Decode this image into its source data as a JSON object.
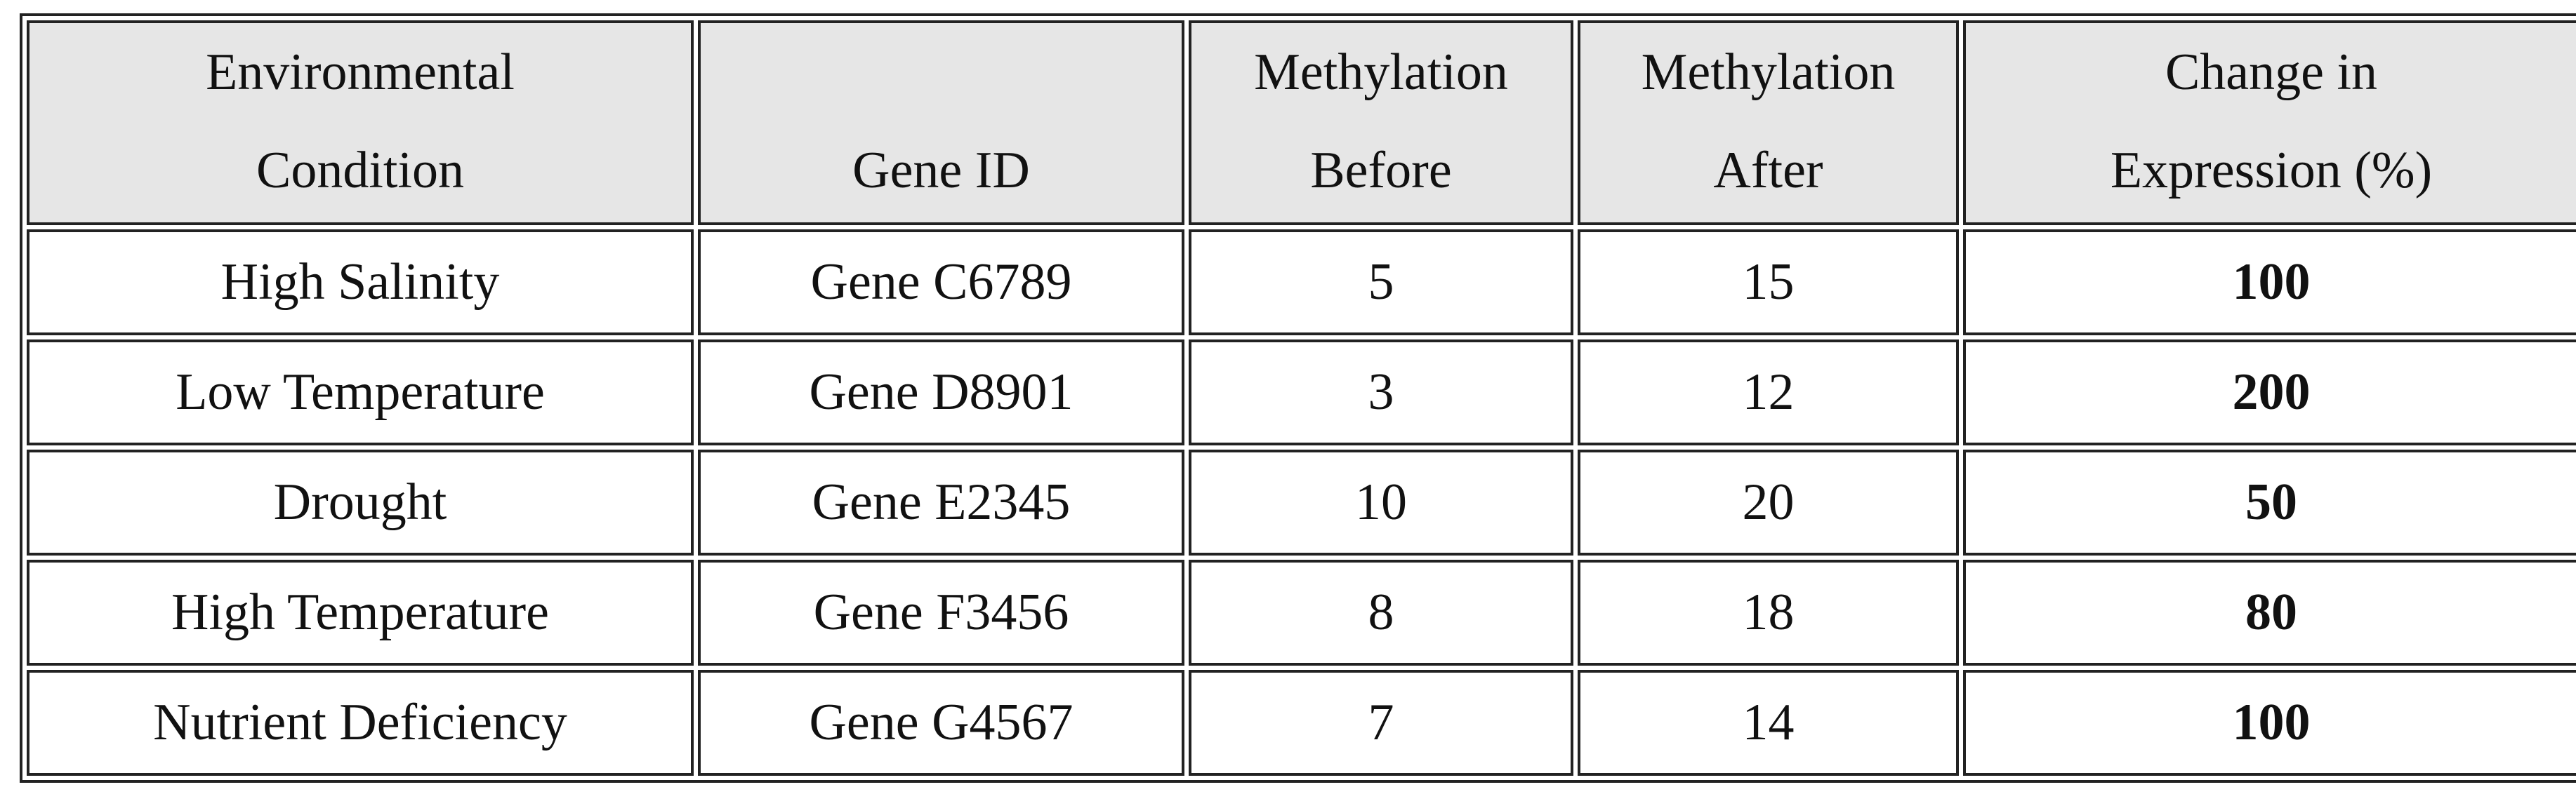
{
  "table": {
    "headers": [
      [
        "Environmental",
        "Condition"
      ],
      [
        "Gene ID"
      ],
      [
        "Methylation",
        "Before"
      ],
      [
        "Methylation",
        "After"
      ],
      [
        "Change in",
        "Expression (%)"
      ]
    ],
    "rows": [
      [
        "High Salinity",
        "Gene C6789",
        5,
        15,
        100
      ],
      [
        "Low Temperature",
        "Gene D8901",
        3,
        12,
        200
      ],
      [
        "Drought",
        "Gene E2345",
        10,
        20,
        50
      ],
      [
        "High Temperature",
        "Gene F3456",
        8,
        18,
        80
      ],
      [
        "Nutrient Deficiency",
        "Gene G4567",
        7,
        14,
        100
      ]
    ]
  }
}
